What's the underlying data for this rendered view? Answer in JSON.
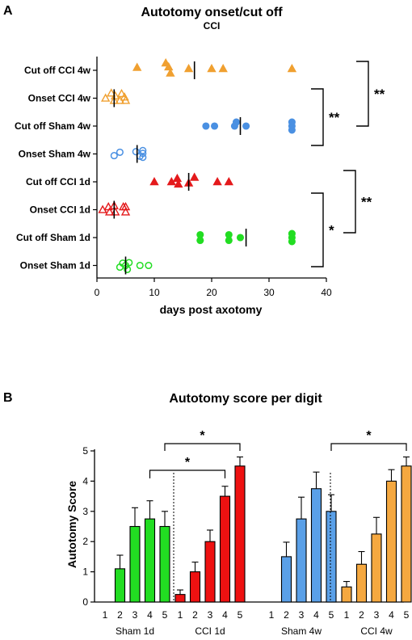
{
  "panel_a": {
    "letter": "A",
    "chart_data": {
      "type": "scatter",
      "title": "Autotomy onset/cut off",
      "subtitle": "CCI",
      "xlabel": "days post axotomy",
      "xlim": [
        0,
        40
      ],
      "xticks": [
        "0",
        "10",
        "20",
        "30",
        "40"
      ],
      "categories": [
        "Cut off CCI 4w",
        "Onset CCI 4w",
        "Cut off Sham 4w",
        "Onset Sham 4w",
        "Cut off CCI 1d",
        "Onset CCI 1d",
        "Cut off Sham 1d",
        "Onset Sham 1d"
      ],
      "series": [
        {
          "category": "Cut off CCI 4w",
          "color": "#f0a030",
          "marker": "triangle-filled",
          "points": [
            [
              7,
              0.5
            ],
            [
              12,
              1.3
            ],
            [
              12.5,
              0.6
            ],
            [
              12.8,
              -0.5
            ],
            [
              16,
              0.3
            ],
            [
              20,
              0.3
            ],
            [
              22,
              0.3
            ],
            [
              34,
              0.3
            ]
          ],
          "median": 17
        },
        {
          "category": "Onset CCI 4w",
          "color": "#f0a030",
          "marker": "triangle-open",
          "points": [
            [
              1.5,
              0
            ],
            [
              2.5,
              0.9
            ],
            [
              3,
              -0.4
            ],
            [
              3.2,
              0.4
            ],
            [
              4,
              -0.4
            ],
            [
              4.3,
              0.8
            ],
            [
              4.8,
              0.2
            ],
            [
              5,
              -0.4
            ]
          ],
          "median": 3
        },
        {
          "category": "Cut off Sham 4w",
          "color": "#4a90e2",
          "marker": "circle-filled",
          "points": [
            [
              19,
              0
            ],
            [
              20.5,
              0
            ],
            [
              24,
              0
            ],
            [
              24.3,
              0.7
            ],
            [
              26,
              0
            ],
            [
              34,
              0.7
            ],
            [
              34,
              0
            ],
            [
              34,
              -0.7
            ]
          ],
          "median": 25
        },
        {
          "category": "Onset Sham 4w",
          "color": "#4a90e2",
          "marker": "circle-open",
          "points": [
            [
              3,
              -0.3
            ],
            [
              4,
              0.3
            ],
            [
              6.8,
              0.4
            ],
            [
              7.5,
              -0.4
            ],
            [
              8,
              0.6
            ],
            [
              8,
              0.1
            ],
            [
              8,
              -0.6
            ]
          ],
          "median": 7
        },
        {
          "category": "Cut off CCI 1d",
          "color": "#e41a1c",
          "marker": "triangle-filled",
          "points": [
            [
              10,
              0
            ],
            [
              13,
              0
            ],
            [
              14,
              0.6
            ],
            [
              14.2,
              -0.4
            ],
            [
              16,
              -0.2
            ],
            [
              17,
              0.8
            ],
            [
              21,
              0
            ],
            [
              23,
              0
            ]
          ],
          "median": 16
        },
        {
          "category": "Onset CCI 1d",
          "color": "#e41a1c",
          "marker": "triangle-open",
          "points": [
            [
              1,
              0
            ],
            [
              2,
              0.5
            ],
            [
              2.2,
              -0.4
            ],
            [
              3,
              0.7
            ],
            [
              3.2,
              -0.4
            ],
            [
              4.6,
              0.5
            ],
            [
              5,
              -0.4
            ],
            [
              5,
              0.5
            ]
          ],
          "median": 3
        },
        {
          "category": "Cut off Sham 1d",
          "color": "#22dd22",
          "marker": "circle-filled",
          "points": [
            [
              18,
              0.5
            ],
            [
              18,
              -0.5
            ],
            [
              23,
              0.5
            ],
            [
              23,
              -0.5
            ],
            [
              25,
              0
            ],
            [
              34,
              0.7
            ],
            [
              34,
              0
            ],
            [
              34,
              -0.7
            ]
          ],
          "median": 26
        },
        {
          "category": "Onset Sham 1d",
          "color": "#22dd22",
          "marker": "circle-open",
          "points": [
            [
              4,
              -0.3
            ],
            [
              4.5,
              0.4
            ],
            [
              5,
              0
            ],
            [
              5.3,
              -0.7
            ],
            [
              5.6,
              0.5
            ],
            [
              7.5,
              0
            ],
            [
              9,
              0
            ]
          ],
          "median": 5
        }
      ],
      "significance": [
        {
          "label": "**",
          "between": [
            "Cut off CCI 4w",
            "Onset CCI 4w / Cut off Sham 4w"
          ]
        },
        {
          "label": "**",
          "between": [
            "Onset CCI 4w",
            "Onset Sham 4w"
          ]
        },
        {
          "label": "**",
          "between": [
            "Cut off CCI 1d",
            "Onset CCI 1d / Cut off Sham 1d"
          ]
        },
        {
          "label": "*",
          "between": [
            "Onset CCI 1d",
            "Onset Sham 1d"
          ]
        }
      ]
    }
  },
  "panel_b": {
    "letter": "B",
    "chart_data": {
      "type": "bar",
      "title": "Autotomy score per digit",
      "ylabel": "Autotomy Score",
      "ylim": [
        0,
        5
      ],
      "yticks": [
        "0",
        "1",
        "2",
        "3",
        "4",
        "5"
      ],
      "digits": [
        "1",
        "2",
        "3",
        "4",
        "5"
      ],
      "groups": [
        {
          "name": "Sham 1d",
          "color": "#22dd22",
          "values": [
            0,
            1.1,
            2.5,
            2.75,
            2.5
          ],
          "errors": [
            0,
            0.45,
            0.62,
            0.6,
            0.5
          ]
        },
        {
          "name": "CCI 1d",
          "color": "#ee1111",
          "values": [
            0.25,
            1.0,
            2.0,
            3.5,
            4.5
          ],
          "errors": [
            0.15,
            0.32,
            0.38,
            0.33,
            0.3
          ]
        },
        {
          "name": "Sham 4w",
          "color": "#5aa0e8",
          "values": [
            0,
            1.5,
            2.75,
            3.75,
            3.0
          ],
          "errors": [
            0,
            0.48,
            0.72,
            0.55,
            0.55
          ]
        },
        {
          "name": "CCI 4w",
          "color": "#f5a840",
          "values": [
            0.5,
            1.25,
            2.25,
            4.0,
            4.5
          ],
          "errors": [
            0.18,
            0.42,
            0.55,
            0.38,
            0.3
          ]
        }
      ],
      "significance": [
        {
          "label": "*",
          "between": [
            "Sham 1d digit 4",
            "CCI 1d digit 4"
          ]
        },
        {
          "label": "*",
          "between": [
            "Sham 1d digit 5",
            "CCI 1d digit 5"
          ]
        },
        {
          "label": "*",
          "between": [
            "Sham 4w digit 5",
            "CCI 4w digit 5"
          ]
        }
      ]
    }
  }
}
